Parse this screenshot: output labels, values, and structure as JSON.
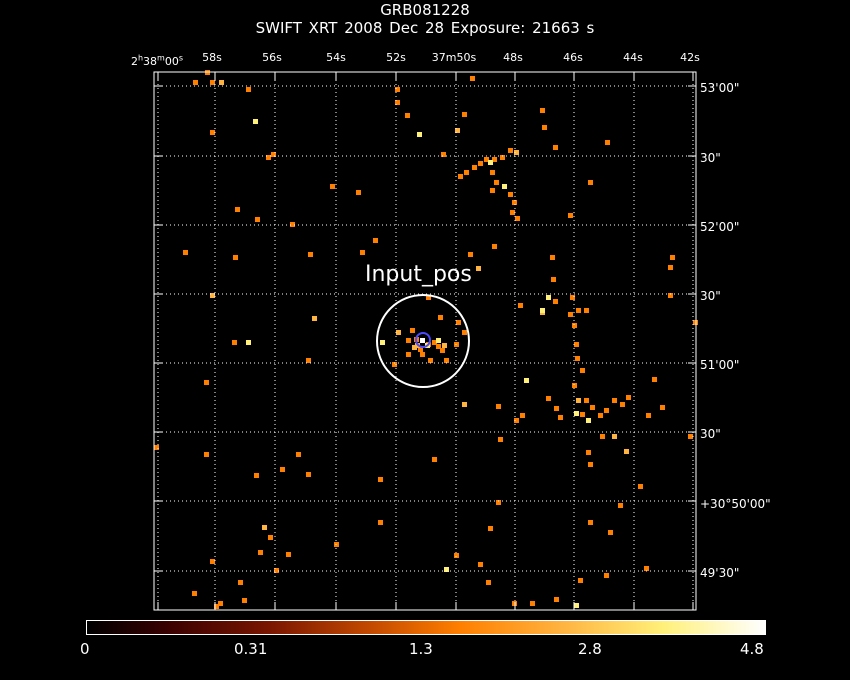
{
  "header": {
    "title": "GRB081228",
    "subtitle": "SWIFT XRT   2008 Dec 28    Exposure: 21663 s"
  },
  "axes": {
    "ra_labels": [
      "2h38m00s",
      "58s",
      "56s",
      "54s",
      "52s",
      "37m50s",
      "48s",
      "46s",
      "44s",
      "42s"
    ],
    "dec_labels": [
      "53'00\"",
      "30\"",
      "52'00\"",
      "30\"",
      "51'00\"",
      "30\"",
      "+30°50'00\"",
      "49'30\""
    ]
  },
  "source": {
    "label": "Input_pos"
  },
  "colorbar": {
    "labels": [
      "0",
      "0.31",
      "1.3",
      "2.8",
      "4.8"
    ]
  },
  "colors": {
    "low": "#ff7f00",
    "mid": "#ffb340",
    "high": "#fff07a",
    "peak": "#ffffff",
    "frame": "#ffffff",
    "marker": "#4040ff"
  }
}
